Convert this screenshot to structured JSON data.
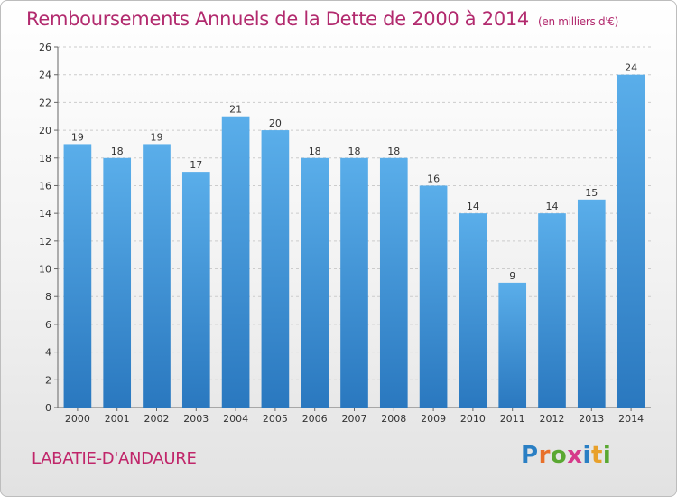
{
  "header": {
    "title": "Remboursements Annuels de la Dette de 2000 à 2014",
    "unit": "(en milliers d'€)"
  },
  "footer": {
    "commune": "LABATIE-D'ANDAURE",
    "logo_letters": [
      "P",
      "r",
      "o",
      "x",
      "i",
      "t",
      "i"
    ],
    "logo_colors": [
      "#2a7fc4",
      "#e8702a",
      "#5aa832",
      "#d63a8a",
      "#2a7fc4",
      "#e8a02a",
      "#5aa832"
    ]
  },
  "chart_data": {
    "type": "bar",
    "title": "Remboursements Annuels de la Dette de 2000 à 2014",
    "xlabel": "",
    "ylabel": "",
    "categories": [
      "2000",
      "2001",
      "2002",
      "2003",
      "2004",
      "2005",
      "2006",
      "2007",
      "2008",
      "2009",
      "2010",
      "2011",
      "2012",
      "2013",
      "2014"
    ],
    "values": [
      19,
      18,
      19,
      17,
      21,
      20,
      18,
      18,
      18,
      16,
      14,
      9,
      14,
      15,
      24
    ],
    "ylim": [
      0,
      26
    ],
    "yticks": [
      0,
      2,
      4,
      6,
      8,
      10,
      12,
      14,
      16,
      18,
      20,
      22,
      24,
      26
    ],
    "grid": "horizontal dashed",
    "bar_color_top": "#5aaeea",
    "bar_color_bottom": "#2a78bf"
  }
}
